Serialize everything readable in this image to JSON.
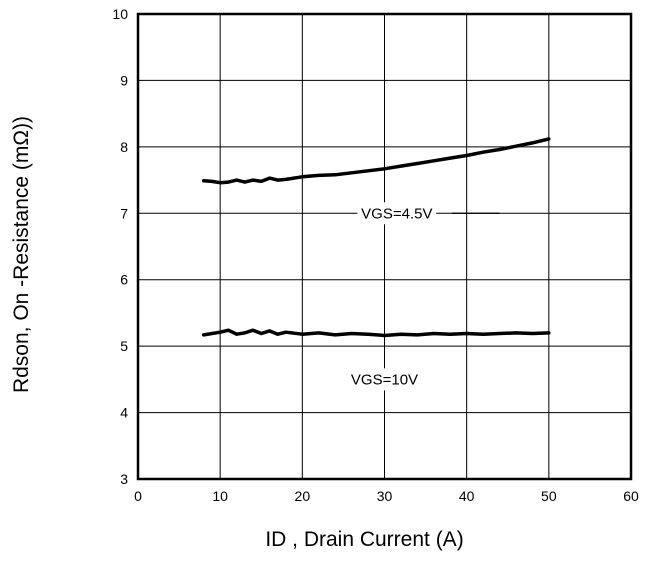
{
  "chart_data": {
    "type": "line",
    "title": "",
    "xlabel": "ID , Drain Current (A)",
    "ylabel": "Rdson, On -Resistance (mΩ))",
    "xlim": [
      0,
      60
    ],
    "ylim": [
      3,
      10
    ],
    "xticks": [
      0,
      10,
      20,
      30,
      40,
      50,
      60
    ],
    "yticks": [
      3,
      4,
      5,
      6,
      7,
      8,
      9,
      10
    ],
    "grid": true,
    "series": [
      {
        "name": "VGS=4.5V",
        "color": "#000000",
        "x": [
          8,
          9,
          10,
          11,
          12,
          13,
          14,
          15,
          16,
          17,
          18,
          20,
          22,
          24,
          26,
          28,
          30,
          32,
          34,
          36,
          38,
          40,
          42,
          44,
          46,
          48,
          50
        ],
        "y": [
          7.49,
          7.48,
          7.46,
          7.47,
          7.5,
          7.47,
          7.5,
          7.48,
          7.53,
          7.5,
          7.51,
          7.55,
          7.57,
          7.58,
          7.61,
          7.64,
          7.67,
          7.71,
          7.75,
          7.79,
          7.83,
          7.87,
          7.92,
          7.96,
          8.01,
          8.06,
          8.12
        ]
      },
      {
        "name": "VGS=10V",
        "color": "#000000",
        "x": [
          8,
          10,
          11,
          12,
          13,
          14,
          15,
          16,
          17,
          18,
          20,
          22,
          24,
          26,
          28,
          30,
          32,
          34,
          36,
          38,
          40,
          42,
          44,
          46,
          48,
          50
        ],
        "y": [
          5.17,
          5.21,
          5.24,
          5.18,
          5.2,
          5.24,
          5.19,
          5.23,
          5.18,
          5.21,
          5.18,
          5.2,
          5.17,
          5.19,
          5.18,
          5.16,
          5.18,
          5.17,
          5.19,
          5.18,
          5.19,
          5.18,
          5.19,
          5.2,
          5.19,
          5.2
        ]
      }
    ],
    "annotations": [
      {
        "text": "VGS=4.5V",
        "x": 31.5,
        "y": 7.0,
        "line_from": 38.2,
        "line_to": 44
      },
      {
        "text": "VGS=10V",
        "x": 30,
        "y": 4.5
      }
    ]
  }
}
